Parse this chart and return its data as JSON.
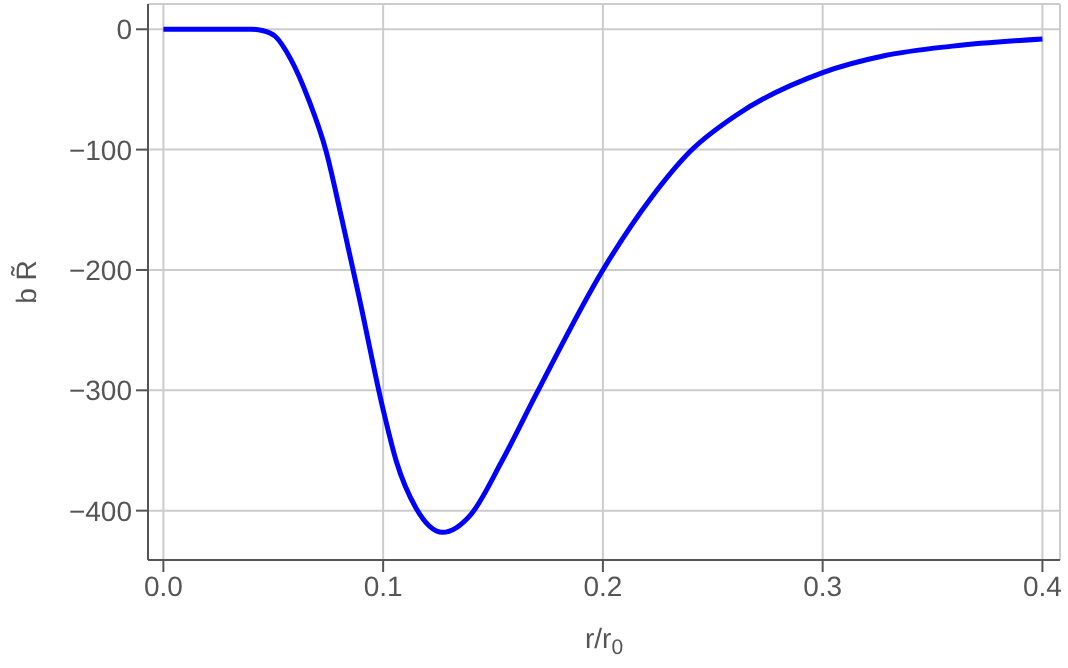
{
  "chart_data": {
    "type": "line",
    "xlabel": "r/r$_{0}$",
    "ylabel": "b R̃",
    "x": [
      0,
      0.02,
      0.04,
      0.045,
      0.051,
      0.058,
      0.066,
      0.074,
      0.081,
      0.089,
      0.1,
      0.106,
      0.115,
      0.127,
      0.14,
      0.154,
      0.17,
      0.2,
      0.222,
      0.24,
      0.261,
      0.3,
      0.328,
      0.359,
      0.4
    ],
    "series": [
      {
        "color": "#0000ff",
        "values": [
          0,
          0,
          0,
          -1,
          -6,
          -25,
          -58,
          -101,
          -156,
          -222,
          -316,
          -359,
          -398,
          -418,
          -403,
          -359,
          -302,
          -200,
          -140,
          -101,
          -71,
          -36,
          -22,
          -14,
          -8
        ]
      }
    ],
    "xlim": [
      -0.007,
      0.408
    ],
    "ylim": [
      -441,
      21
    ],
    "xticks": [
      {
        "value": 0,
        "label": "0.0"
      },
      {
        "value": 0.1,
        "label": "0.1"
      },
      {
        "value": 0.2,
        "label": "0.2"
      },
      {
        "value": 0.3,
        "label": "0.3"
      },
      {
        "value": 0.4,
        "label": "0.4"
      }
    ],
    "yticks": [
      -400,
      -300,
      -200,
      -100,
      0
    ],
    "grid": true,
    "marker": "none",
    "line_style": "solid",
    "legend": false
  }
}
